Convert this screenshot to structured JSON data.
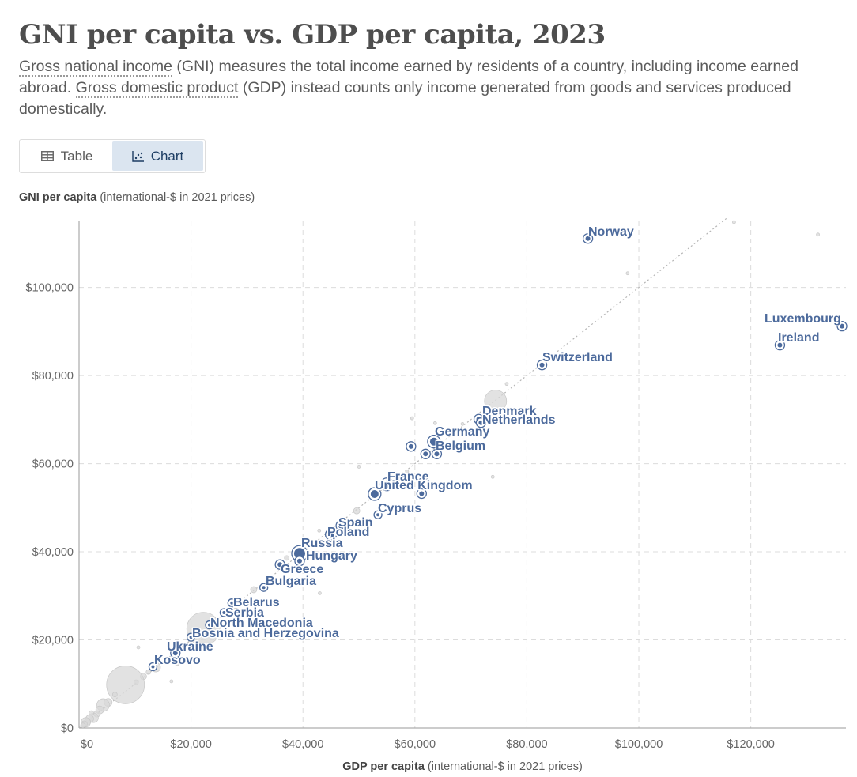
{
  "title": "GNI per capita vs. GDP per capita, 2023",
  "subtitle": {
    "term1": "Gross national income",
    "text1": " (GNI) measures the total income earned by residents of a country, including income earned abroad. ",
    "term2": "Gross domestic product",
    "text2": " (GDP) instead counts only income generated from goods and services produced domestically."
  },
  "tabs": {
    "table": "Table",
    "chart": "Chart"
  },
  "colors": {
    "highlight": "#4c6a9c",
    "background_points": "#d8d8d8",
    "grid": "#dcdcdc"
  },
  "chart_data": {
    "type": "scatter",
    "xlabel_bold": "GDP per capita",
    "xlabel_rest": " (international-$ in 2021 prices)",
    "ylabel_bold": "GNI per capita",
    "ylabel_rest": " (international-$ in 2021 prices)",
    "xlim": [
      0,
      137000
    ],
    "ylim": [
      0,
      115000
    ],
    "x_ticks": [
      "$0",
      "$20,000",
      "$40,000",
      "$60,000",
      "$80,000",
      "$100,000",
      "$120,000"
    ],
    "x_tick_values": [
      0,
      20000,
      40000,
      60000,
      80000,
      100000,
      120000
    ],
    "y_ticks": [
      "$0",
      "$20,000",
      "$40,000",
      "$60,000",
      "$80,000",
      "$100,000"
    ],
    "y_tick_values": [
      0,
      20000,
      40000,
      60000,
      80000,
      100000
    ],
    "grid": true,
    "reference_line": "y = x",
    "highlighted": [
      {
        "name": "Norway",
        "x": 90900,
        "y": 111100,
        "size": 3
      },
      {
        "name": "Luxembourg",
        "x": 136300,
        "y": 91200,
        "size": 3
      },
      {
        "name": "Ireland",
        "x": 125200,
        "y": 86900,
        "size": 3
      },
      {
        "name": "Switzerland",
        "x": 82700,
        "y": 82400,
        "size": 3
      },
      {
        "name": "Denmark",
        "x": 71400,
        "y": 70100,
        "size": 3
      },
      {
        "name": "Netherlands",
        "x": 71800,
        "y": 69300,
        "size": 3
      },
      {
        "name": "Germany",
        "x": 63400,
        "y": 65000,
        "size": 5
      },
      {
        "name": "Belgium",
        "x": 63900,
        "y": 62200,
        "size": 3
      },
      {
        "name": "France",
        "x": 55000,
        "y": 55300,
        "size": 5
      },
      {
        "name": "United Kingdom",
        "x": 52800,
        "y": 53100,
        "size": 5
      },
      {
        "name": "Cyprus",
        "x": 53400,
        "y": 48400,
        "size": 2
      },
      {
        "name": "Spain",
        "x": 46900,
        "y": 45900,
        "size": 4
      },
      {
        "name": "Poland",
        "x": 45000,
        "y": 43900,
        "size": 4
      },
      {
        "name": "Russia",
        "x": 39400,
        "y": 39600,
        "size": 7
      },
      {
        "name": "Hungary",
        "x": 39400,
        "y": 37900,
        "size": 3
      },
      {
        "name": "Greece",
        "x": 35900,
        "y": 37100,
        "size": 3
      },
      {
        "name": "Bulgaria",
        "x": 33000,
        "y": 31900,
        "size": 2
      },
      {
        "name": "Belarus",
        "x": 27300,
        "y": 28400,
        "size": 2
      },
      {
        "name": "Serbia",
        "x": 25900,
        "y": 26200,
        "size": 2
      },
      {
        "name": "North Macedonia",
        "x": 23300,
        "y": 23400,
        "size": 2
      },
      {
        "name": "Bosnia and Herzegovina",
        "x": 20000,
        "y": 20600,
        "size": 2
      },
      {
        "name": "Ukraine",
        "x": 17200,
        "y": 17000,
        "size": 3
      },
      {
        "name": "Kosovo",
        "x": 13200,
        "y": 13900,
        "size": 2
      },
      {
        "name": "Unlabeled A",
        "x": 59300,
        "y": 63900,
        "size": 3
      },
      {
        "name": "Unlabeled B",
        "x": 61900,
        "y": 62200,
        "size": 3
      },
      {
        "name": "Unlabeled C",
        "x": 61200,
        "y": 53200,
        "size": 3
      }
    ],
    "background_points": [
      {
        "x": 117000,
        "y": 114800,
        "size": 2
      },
      {
        "x": 132000,
        "y": 112000,
        "size": 2
      },
      {
        "x": 98000,
        "y": 103200,
        "size": 2
      },
      {
        "x": 74400,
        "y": 74200,
        "size": 14
      },
      {
        "x": 76400,
        "y": 78100,
        "size": 2
      },
      {
        "x": 73900,
        "y": 71900,
        "size": 2
      },
      {
        "x": 59500,
        "y": 70300,
        "size": 2
      },
      {
        "x": 63600,
        "y": 69200,
        "size": 2
      },
      {
        "x": 68500,
        "y": 69000,
        "size": 2
      },
      {
        "x": 73900,
        "y": 57000,
        "size": 2
      },
      {
        "x": 50000,
        "y": 59300,
        "size": 2
      },
      {
        "x": 57000,
        "y": 56500,
        "size": 3
      },
      {
        "x": 58600,
        "y": 58200,
        "size": 2
      },
      {
        "x": 49600,
        "y": 49300,
        "size": 4
      },
      {
        "x": 42900,
        "y": 44800,
        "size": 2
      },
      {
        "x": 37100,
        "y": 38600,
        "size": 3
      },
      {
        "x": 43000,
        "y": 30600,
        "size": 2
      },
      {
        "x": 31200,
        "y": 31400,
        "size": 4
      },
      {
        "x": 28000,
        "y": 26700,
        "size": 3
      },
      {
        "x": 22200,
        "y": 22500,
        "size": 21
      },
      {
        "x": 18100,
        "y": 18600,
        "size": 3
      },
      {
        "x": 10600,
        "y": 18300,
        "size": 2
      },
      {
        "x": 17500,
        "y": 14900,
        "size": 4
      },
      {
        "x": 16500,
        "y": 10600,
        "size": 2
      },
      {
        "x": 13700,
        "y": 13800,
        "size": 6
      },
      {
        "x": 12400,
        "y": 12700,
        "size": 3
      },
      {
        "x": 11500,
        "y": 11700,
        "size": 4
      },
      {
        "x": 10200,
        "y": 10400,
        "size": 3
      },
      {
        "x": 8300,
        "y": 9800,
        "size": 24
      },
      {
        "x": 6400,
        "y": 7600,
        "size": 3
      },
      {
        "x": 5200,
        "y": 5800,
        "size": 5
      },
      {
        "x": 4300,
        "y": 5200,
        "size": 8
      },
      {
        "x": 3700,
        "y": 4100,
        "size": 5
      },
      {
        "x": 3200,
        "y": 3200,
        "size": 4
      },
      {
        "x": 2600,
        "y": 2300,
        "size": 6
      },
      {
        "x": 2200,
        "y": 3400,
        "size": 3
      },
      {
        "x": 1900,
        "y": 2100,
        "size": 5
      },
      {
        "x": 1500,
        "y": 1400,
        "size": 4
      },
      {
        "x": 1200,
        "y": 1300,
        "size": 6
      },
      {
        "x": 900,
        "y": 900,
        "size": 4
      },
      {
        "x": 700,
        "y": 600,
        "size": 3
      }
    ]
  }
}
